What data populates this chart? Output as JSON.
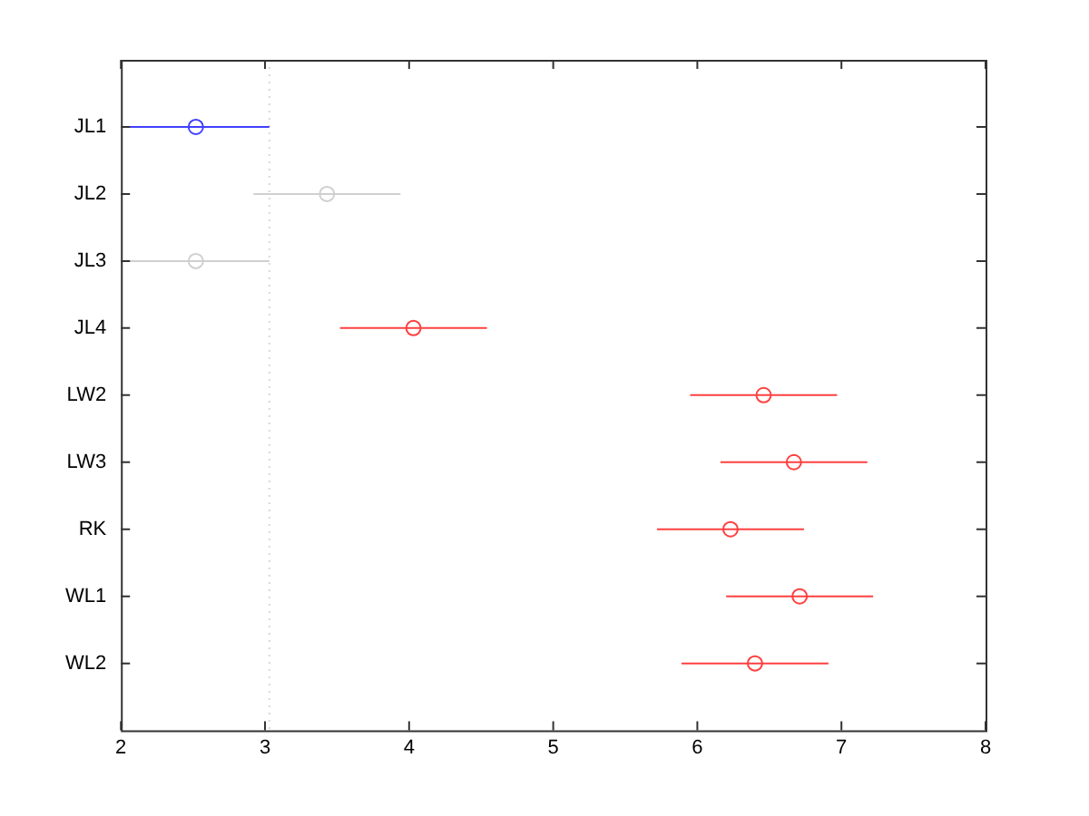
{
  "chart_data": {
    "type": "scatter",
    "orientation": "horizontal",
    "categories": [
      "JL1",
      "JL2",
      "JL3",
      "JL4",
      "LW2",
      "LW3",
      "RK",
      "WL1",
      "WL2"
    ],
    "values": [
      2.52,
      3.43,
      2.52,
      4.03,
      6.46,
      6.67,
      6.23,
      6.71,
      6.4
    ],
    "errors": [
      0.51,
      0.51,
      0.51,
      0.51,
      0.51,
      0.51,
      0.51,
      0.51,
      0.51
    ],
    "colors": [
      "#4040ff",
      "#d0d0d0",
      "#d0d0d0",
      "#ff4040",
      "#ff4040",
      "#ff4040",
      "#ff4040",
      "#ff4040",
      "#ff4040"
    ],
    "marker": "circle",
    "xlim": [
      2,
      8
    ],
    "xticks": [
      2,
      3,
      4,
      5,
      6,
      7,
      8
    ],
    "ref_lines": [
      {
        "axis": "x",
        "value": 3.03,
        "color": "#d8d8d8",
        "line_style": "dotted"
      }
    ],
    "grid": false,
    "legend": false
  }
}
